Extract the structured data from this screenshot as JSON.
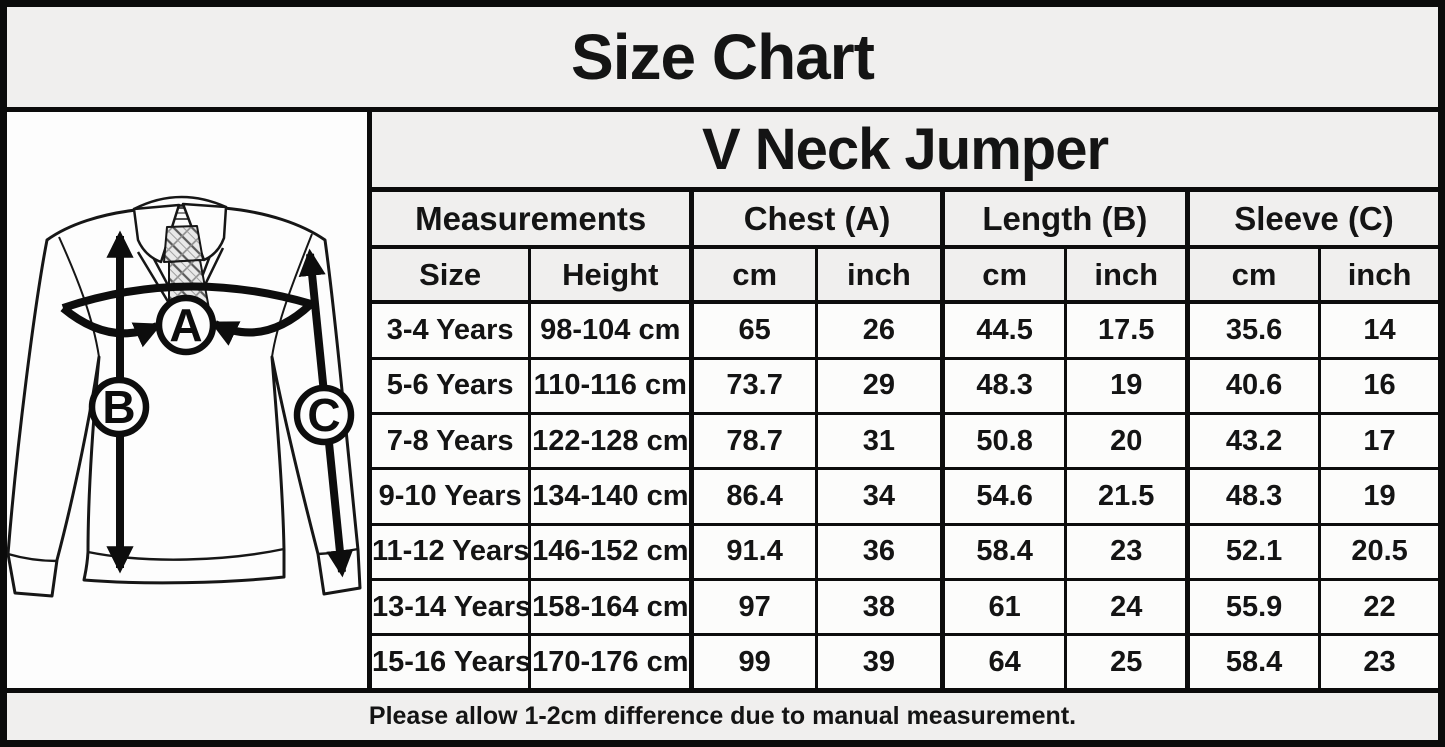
{
  "page_title": "Size Chart",
  "product_title": "V Neck Jumper",
  "footer_note": "Please allow 1-2cm difference due to manual measurement.",
  "diagram": {
    "description": "Line drawing of a v-neck jumper worn over a shirt and tie, with measurement arrows",
    "markers": [
      {
        "letter": "A",
        "measures": "Chest"
      },
      {
        "letter": "B",
        "measures": "Length"
      },
      {
        "letter": "C",
        "measures": "Sleeve"
      }
    ]
  },
  "colors": {
    "background": "#f0efee",
    "cell_background": "#fcfcfb",
    "panel_background": "#fdfdfd",
    "border": "#0b0b0b",
    "text": "#141414"
  },
  "chart_data": {
    "type": "table",
    "title": "V Neck Jumper",
    "group_headers": [
      {
        "label": "Measurements",
        "span": 2
      },
      {
        "label": "Chest (A)",
        "span": 2
      },
      {
        "label": "Length (B)",
        "span": 2
      },
      {
        "label": "Sleeve (C)",
        "span": 2
      }
    ],
    "sub_headers": [
      "Size",
      "Height",
      "cm",
      "inch",
      "cm",
      "inch",
      "cm",
      "inch"
    ],
    "rows": [
      [
        "3-4 Years",
        "98-104 cm",
        "65",
        "26",
        "44.5",
        "17.5",
        "35.6",
        "14"
      ],
      [
        "5-6 Years",
        "110-116 cm",
        "73.7",
        "29",
        "48.3",
        "19",
        "40.6",
        "16"
      ],
      [
        "7-8 Years",
        "122-128 cm",
        "78.7",
        "31",
        "50.8",
        "20",
        "43.2",
        "17"
      ],
      [
        "9-10 Years",
        "134-140 cm",
        "86.4",
        "34",
        "54.6",
        "21.5",
        "48.3",
        "19"
      ],
      [
        "11-12 Years",
        "146-152 cm",
        "91.4",
        "36",
        "58.4",
        "23",
        "52.1",
        "20.5"
      ],
      [
        "13-14 Years",
        "158-164 cm",
        "97",
        "38",
        "61",
        "24",
        "55.9",
        "22"
      ],
      [
        "15-16 Years",
        "170-176 cm",
        "99",
        "39",
        "64",
        "25",
        "58.4",
        "23"
      ]
    ]
  }
}
